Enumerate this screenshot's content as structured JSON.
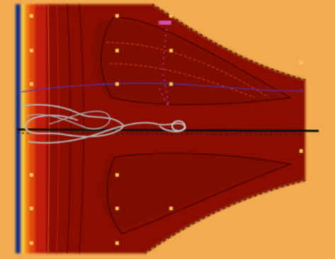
{
  "chart_data": {
    "type": "heatmap",
    "title": "",
    "xlabel": "",
    "ylabel": "",
    "ylim": [
      -1,
      1
    ],
    "y_ticks": [
      "",
      "",
      "",
      "",
      "",
      "",
      "",
      "",
      "",
      "",
      ""
    ],
    "grid": true,
    "colors": {
      "background": "#f2ab4e",
      "deep_red": "#8a0d06",
      "red": "#c01a0a",
      "orange_red": "#e04a10",
      "orange": "#f07a1a",
      "yellow": "#f3d02a",
      "blue": "#0b2f8a",
      "axis_line": "#111111",
      "trajectory": "#b8b8b8",
      "markers": "#f4c65c"
    },
    "grid_markers": [
      {
        "x": 0.05,
        "y": 0.95
      },
      {
        "x": 0.32,
        "y": 0.95
      },
      {
        "x": 0.05,
        "y": 0.66
      },
      {
        "x": 0.32,
        "y": 0.66
      },
      {
        "x": 0.49,
        "y": 0.95
      },
      {
        "x": 0.49,
        "y": 0.66
      },
      {
        "x": 0.49,
        "y": 0.38
      },
      {
        "x": 0.05,
        "y": 0.38
      },
      {
        "x": 0.32,
        "y": 0.38
      },
      {
        "x": 0.9,
        "y": 0.56
      },
      {
        "x": 0.05,
        "y": -0.38
      },
      {
        "x": 0.32,
        "y": -0.38
      },
      {
        "x": 0.9,
        "y": -0.18
      },
      {
        "x": 0.05,
        "y": -0.66
      },
      {
        "x": 0.32,
        "y": -0.66
      },
      {
        "x": 0.49,
        "y": -0.66
      },
      {
        "x": 0.05,
        "y": -0.95
      },
      {
        "x": 0.32,
        "y": -0.95
      }
    ]
  }
}
